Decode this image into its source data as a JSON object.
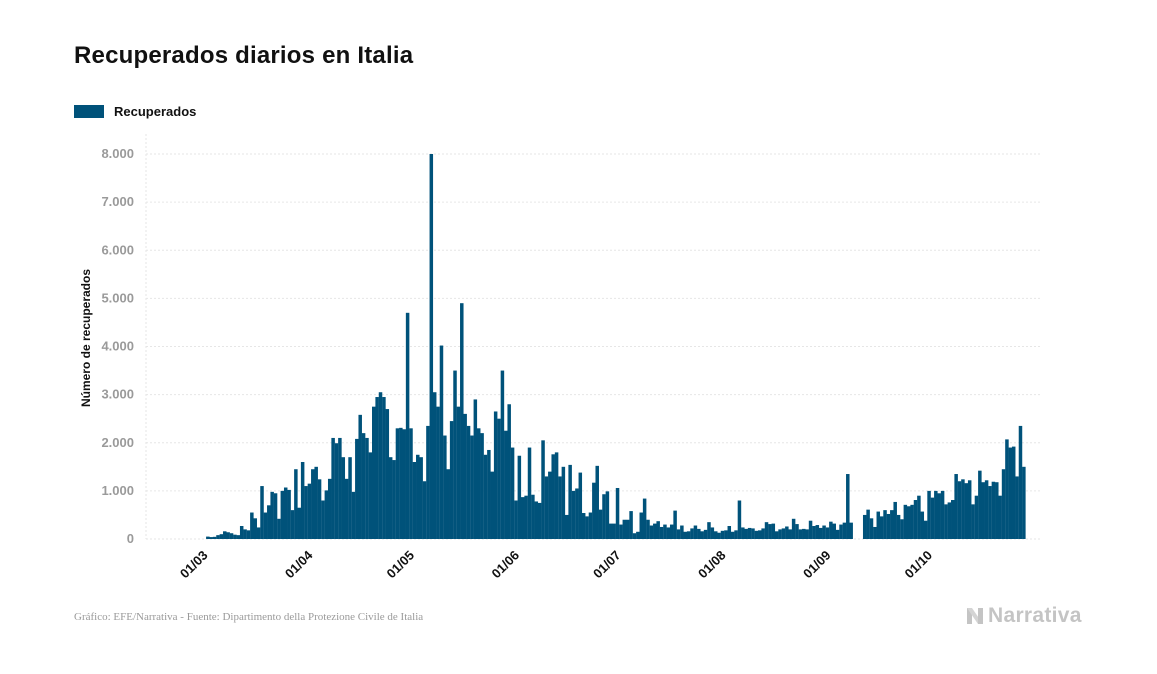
{
  "colors": {
    "bar": "#00527a",
    "grid": "#e6e6e6",
    "tick_text": "#9a9a9a",
    "axis_label": "#111111"
  },
  "footer": {
    "source": "Gráfico: EFE/Narrativa - Fuente: Dipartimento della Protezione Civile de Italia"
  },
  "logo": {
    "text": "Narrativa",
    "icon": "narrativa-logo-icon"
  },
  "chart_data": {
    "type": "bar",
    "title": "Recuperados diarios en Italia",
    "xlabel": "",
    "ylabel": "Número de recuperados",
    "legend": {
      "position": "top-left",
      "entries": [
        "Recuperados"
      ]
    },
    "grid": true,
    "ylim": [
      0,
      8400
    ],
    "yticks": [
      0,
      1000,
      2000,
      3000,
      4000,
      5000,
      6000,
      7000,
      8000
    ],
    "ytick_labels": [
      "0",
      "1.000",
      "2.000",
      "3.000",
      "4.000",
      "5.000",
      "6.000",
      "7.000",
      "8.000"
    ],
    "xticks": [
      {
        "label": "01/03",
        "index": 7
      },
      {
        "label": "01/04",
        "index": 38
      },
      {
        "label": "01/05",
        "index": 68
      },
      {
        "label": "01/06",
        "index": 99
      },
      {
        "label": "01/07",
        "index": 129
      },
      {
        "label": "01/08",
        "index": 160
      },
      {
        "label": "01/09",
        "index": 191
      },
      {
        "label": "01/10",
        "index": 221
      }
    ],
    "x_start": "2020-02-23",
    "series": [
      {
        "name": "Recuperados",
        "values": [
          0,
          0,
          0,
          0,
          0,
          0,
          0,
          0,
          50,
          40,
          45,
          80,
          100,
          160,
          140,
          120,
          90,
          80,
          270,
          200,
          180,
          550,
          430,
          240,
          1100,
          550,
          700,
          980,
          950,
          420,
          1000,
          1070,
          1020,
          600,
          1450,
          650,
          1600,
          1100,
          1150,
          1450,
          1500,
          1240,
          800,
          1010,
          1250,
          2100,
          1990,
          2100,
          1700,
          1250,
          1700,
          980,
          2080,
          2580,
          2200,
          2100,
          1800,
          2750,
          2950,
          3050,
          2950,
          2700,
          1700,
          1640,
          2300,
          2310,
          2280,
          4700,
          2300,
          1600,
          1750,
          1700,
          1200,
          2350,
          8000,
          3050,
          2750,
          4020,
          2150,
          1450,
          2450,
          3500,
          2750,
          4900,
          2600,
          2350,
          2150,
          2900,
          2300,
          2200,
          1750,
          1850,
          1400,
          2650,
          2500,
          3500,
          2250,
          2800,
          1900,
          800,
          1730,
          870,
          900,
          1900,
          920,
          780,
          750,
          2050,
          1300,
          1400,
          1760,
          1800,
          1300,
          1500,
          500,
          1540,
          1000,
          1050,
          1380,
          540,
          470,
          550,
          1170,
          1520,
          610,
          930,
          990,
          320,
          320,
          1060,
          300,
          400,
          400,
          580,
          120,
          150,
          550,
          840,
          400,
          280,
          320,
          370,
          250,
          300,
          240,
          300,
          590,
          200,
          280,
          150,
          160,
          220,
          280,
          210,
          160,
          190,
          350,
          240,
          160,
          130,
          170,
          180,
          270,
          150,
          180,
          800,
          240,
          210,
          230,
          220,
          170,
          180,
          220,
          350,
          310,
          320,
          160,
          200,
          220,
          260,
          200,
          420,
          310,
          200,
          210,
          200,
          380,
          270,
          290,
          230,
          280,
          240,
          360,
          320,
          190,
          300,
          340,
          1350,
          340,
          0,
          0,
          0,
          500,
          610,
          430,
          250,
          570,
          470,
          600,
          520,
          600,
          770,
          500,
          410,
          710,
          680,
          710,
          810,
          900,
          570,
          380,
          1000,
          860,
          1000,
          950,
          1000,
          720,
          760,
          810,
          1350,
          1200,
          1240,
          1160,
          1220,
          720,
          900,
          1420,
          1180,
          1220,
          1100,
          1190,
          1180,
          900,
          1450,
          2070,
          1900,
          1920,
          1300,
          2350,
          1500
        ]
      }
    ]
  }
}
